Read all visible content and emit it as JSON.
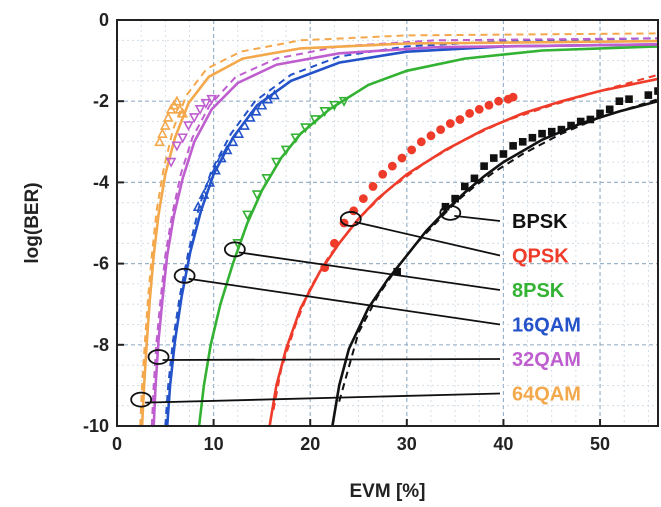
{
  "chart_data": {
    "type": "line",
    "xlabel": "EVM  [%]",
    "ylabel": "log(BER)",
    "xlim": [
      0,
      56
    ],
    "ylim": [
      -10,
      0
    ],
    "x_ticks": [
      0,
      10,
      20,
      30,
      40,
      50
    ],
    "y_ticks": [
      0,
      -2,
      -4,
      -6,
      -8,
      -10
    ],
    "grid": true,
    "legend_placement": "right",
    "series": [
      {
        "name": "BPSK",
        "color": "#111111",
        "marker": "square",
        "theory": [
          [
            22.3,
            -10
          ],
          [
            23,
            -9
          ],
          [
            24,
            -8.1
          ],
          [
            26,
            -7.1
          ],
          [
            28,
            -6.4
          ],
          [
            30,
            -5.8
          ],
          [
            32,
            -5.2
          ],
          [
            34,
            -4.7
          ],
          [
            36,
            -4.25
          ],
          [
            38,
            -3.85
          ],
          [
            40,
            -3.5
          ],
          [
            44,
            -2.95
          ],
          [
            48,
            -2.55
          ],
          [
            52,
            -2.25
          ],
          [
            56,
            -2.0
          ]
        ],
        "simulation": [
          [
            23,
            -9.4
          ],
          [
            25,
            -7.7
          ],
          [
            27,
            -6.8
          ],
          [
            29,
            -6.1
          ],
          [
            31,
            -5.5
          ],
          [
            33,
            -5.0
          ],
          [
            35,
            -4.5
          ],
          [
            37,
            -4.1
          ],
          [
            39,
            -3.75
          ],
          [
            42,
            -3.3
          ],
          [
            46,
            -2.8
          ],
          [
            50,
            -2.4
          ],
          [
            54,
            -2.1
          ],
          [
            56,
            -1.95
          ]
        ],
        "measured": [
          [
            29,
            -6.2
          ],
          [
            34,
            -4.6
          ],
          [
            35,
            -4.4
          ],
          [
            36,
            -4.1
          ],
          [
            37,
            -3.9
          ],
          [
            38,
            -3.6
          ],
          [
            39,
            -3.4
          ],
          [
            40,
            -3.3
          ],
          [
            41,
            -3.1
          ],
          [
            42,
            -3.0
          ],
          [
            43,
            -2.9
          ],
          [
            44,
            -2.8
          ],
          [
            45,
            -2.75
          ],
          [
            46,
            -2.7
          ],
          [
            47,
            -2.6
          ],
          [
            48,
            -2.5
          ],
          [
            49,
            -2.45
          ],
          [
            50,
            -2.3
          ],
          [
            51,
            -2.2
          ],
          [
            52,
            -2.0
          ],
          [
            53,
            -1.95
          ],
          [
            55,
            -1.85
          ],
          [
            56,
            -1.75
          ]
        ],
        "ellipse": [
          34.5,
          -4.75
        ]
      },
      {
        "name": "QPSK",
        "color": "#ee3b2a",
        "marker": "circle",
        "theory": [
          [
            15.8,
            -10
          ],
          [
            16.5,
            -9
          ],
          [
            17.5,
            -8.1
          ],
          [
            19,
            -7.1
          ],
          [
            21,
            -6.2
          ],
          [
            23,
            -5.5
          ],
          [
            25,
            -4.9
          ],
          [
            27,
            -4.4
          ],
          [
            30,
            -3.8
          ],
          [
            34,
            -3.2
          ],
          [
            38,
            -2.7
          ],
          [
            42,
            -2.3
          ],
          [
            46,
            -2.0
          ],
          [
            50,
            -1.75
          ],
          [
            56,
            -1.45
          ]
        ],
        "simulation": [
          [
            16.2,
            -9.6
          ],
          [
            17,
            -8.6
          ],
          [
            18.5,
            -7.5
          ],
          [
            20,
            -6.6
          ],
          [
            22,
            -5.8
          ],
          [
            25,
            -4.9
          ],
          [
            28,
            -4.2
          ],
          [
            32,
            -3.5
          ],
          [
            36,
            -2.95
          ],
          [
            40,
            -2.5
          ],
          [
            45,
            -2.1
          ],
          [
            50,
            -1.75
          ],
          [
            56,
            -1.35
          ]
        ],
        "measured": [
          [
            21.5,
            -6.1
          ],
          [
            22.5,
            -5.5
          ],
          [
            23.5,
            -5.0
          ],
          [
            24.5,
            -4.7
          ],
          [
            25.5,
            -4.4
          ],
          [
            26.5,
            -4.1
          ],
          [
            27.5,
            -3.8
          ],
          [
            28.5,
            -3.6
          ],
          [
            29.5,
            -3.4
          ],
          [
            30.5,
            -3.2
          ],
          [
            31.5,
            -3.0
          ],
          [
            32.5,
            -2.85
          ],
          [
            33.5,
            -2.7
          ],
          [
            34.5,
            -2.55
          ],
          [
            35.5,
            -2.45
          ],
          [
            36.5,
            -2.3
          ],
          [
            37.5,
            -2.2
          ],
          [
            38.5,
            -2.1
          ],
          [
            39.5,
            -2.0
          ],
          [
            40.5,
            -1.95
          ],
          [
            41,
            -1.9
          ]
        ],
        "ellipse": [
          24.2,
          -4.9
        ]
      },
      {
        "name": "8PSK",
        "color": "#33b233",
        "marker": "triangle-down",
        "theory": [
          [
            8.5,
            -10
          ],
          [
            9,
            -9
          ],
          [
            9.7,
            -8
          ],
          [
            10.7,
            -7
          ],
          [
            12,
            -6
          ],
          [
            13.5,
            -5
          ],
          [
            15,
            -4.2
          ],
          [
            17,
            -3.4
          ],
          [
            19,
            -2.8
          ],
          [
            22,
            -2.2
          ],
          [
            26,
            -1.6
          ],
          [
            30,
            -1.25
          ],
          [
            36,
            -0.95
          ],
          [
            44,
            -0.75
          ],
          [
            56,
            -0.65
          ]
        ],
        "simulation": [
          [
            8.5,
            -10
          ],
          [
            9,
            -9
          ],
          [
            9.7,
            -8
          ],
          [
            10.7,
            -7
          ],
          [
            12,
            -6
          ],
          [
            13.5,
            -5
          ],
          [
            15,
            -4.2
          ],
          [
            17,
            -3.4
          ],
          [
            19,
            -2.8
          ],
          [
            22,
            -2.2
          ],
          [
            26,
            -1.6
          ],
          [
            30,
            -1.25
          ],
          [
            36,
            -0.95
          ],
          [
            44,
            -0.75
          ],
          [
            56,
            -0.65
          ]
        ],
        "measured": [
          [
            12.5,
            -5.5
          ],
          [
            13.5,
            -4.8
          ],
          [
            14.5,
            -4.3
          ],
          [
            15.5,
            -3.9
          ],
          [
            16.5,
            -3.5
          ],
          [
            17.5,
            -3.2
          ],
          [
            18.5,
            -2.9
          ],
          [
            19.5,
            -2.65
          ],
          [
            20.5,
            -2.45
          ],
          [
            21.5,
            -2.25
          ],
          [
            22.5,
            -2.1
          ],
          [
            23.5,
            -2.0
          ]
        ],
        "ellipse": [
          12.2,
          -5.65
        ]
      },
      {
        "name": "16QAM",
        "color": "#2352c9",
        "marker": "triangle-up",
        "theory": [
          [
            5.2,
            -10
          ],
          [
            5.5,
            -9
          ],
          [
            6,
            -7.9
          ],
          [
            6.7,
            -6.8
          ],
          [
            7.6,
            -5.7
          ],
          [
            8.7,
            -4.7
          ],
          [
            10,
            -3.8
          ],
          [
            12,
            -2.9
          ],
          [
            14.5,
            -2.1
          ],
          [
            18,
            -1.5
          ],
          [
            23,
            -1.05
          ],
          [
            30,
            -0.78
          ],
          [
            40,
            -0.65
          ],
          [
            56,
            -0.6
          ]
        ],
        "simulation": [
          [
            5.0,
            -10
          ],
          [
            5.3,
            -9
          ],
          [
            5.8,
            -7.9
          ],
          [
            6.5,
            -6.8
          ],
          [
            7.4,
            -5.7
          ],
          [
            8.5,
            -4.6
          ],
          [
            9.8,
            -3.7
          ],
          [
            11.8,
            -2.8
          ],
          [
            14.3,
            -2.0
          ],
          [
            18,
            -1.35
          ],
          [
            23,
            -0.9
          ],
          [
            30,
            -0.65
          ],
          [
            40,
            -0.52
          ],
          [
            56,
            -0.45
          ]
        ],
        "measured": [
          [
            8.4,
            -4.6
          ],
          [
            9.0,
            -4.3
          ],
          [
            9.6,
            -4.0
          ],
          [
            10.2,
            -3.7
          ],
          [
            10.8,
            -3.4
          ],
          [
            11.4,
            -3.2
          ],
          [
            12.0,
            -3.0
          ],
          [
            12.6,
            -2.8
          ],
          [
            13.2,
            -2.6
          ],
          [
            13.8,
            -2.4
          ],
          [
            14.4,
            -2.25
          ],
          [
            15.0,
            -2.1
          ],
          [
            15.6,
            -1.95
          ],
          [
            16.3,
            -1.85
          ]
        ],
        "ellipse": [
          7.0,
          -6.3
        ]
      },
      {
        "name": "32QAM",
        "color": "#bf5fcf",
        "marker": "triangle-down",
        "theory": [
          [
            3.8,
            -10
          ],
          [
            4.0,
            -9
          ],
          [
            4.3,
            -7.9
          ],
          [
            4.7,
            -6.9
          ],
          [
            5.2,
            -5.8
          ],
          [
            5.9,
            -4.8
          ],
          [
            6.8,
            -3.9
          ],
          [
            8,
            -3.0
          ],
          [
            9.8,
            -2.2
          ],
          [
            12.5,
            -1.55
          ],
          [
            16.5,
            -1.1
          ],
          [
            23,
            -0.82
          ],
          [
            33,
            -0.67
          ],
          [
            56,
            -0.6
          ]
        ],
        "simulation": [
          [
            3.6,
            -10
          ],
          [
            3.8,
            -9
          ],
          [
            4.1,
            -7.9
          ],
          [
            4.5,
            -6.9
          ],
          [
            5.0,
            -5.8
          ],
          [
            5.7,
            -4.8
          ],
          [
            6.6,
            -3.8
          ],
          [
            7.8,
            -2.9
          ],
          [
            9.6,
            -2.1
          ],
          [
            12.3,
            -1.4
          ],
          [
            16.5,
            -0.95
          ],
          [
            23,
            -0.65
          ],
          [
            33,
            -0.5
          ],
          [
            56,
            -0.45
          ]
        ],
        "measured": [
          [
            5.6,
            -3.5
          ],
          [
            6.2,
            -3.1
          ],
          [
            6.8,
            -2.9
          ],
          [
            7.4,
            -2.6
          ],
          [
            8.0,
            -2.4
          ],
          [
            8.6,
            -2.2
          ],
          [
            9.2,
            -2.05
          ],
          [
            9.8,
            -1.95
          ]
        ],
        "ellipse": [
          4.3,
          -8.3
        ]
      },
      {
        "name": "64QAM",
        "color": "#f4a84c",
        "marker": "triangle-up",
        "theory": [
          [
            2.6,
            -10
          ],
          [
            2.8,
            -9
          ],
          [
            3.1,
            -7.9
          ],
          [
            3.4,
            -6.9
          ],
          [
            3.8,
            -5.8
          ],
          [
            4.3,
            -4.8
          ],
          [
            5.0,
            -3.8
          ],
          [
            6.0,
            -2.9
          ],
          [
            7.4,
            -2.05
          ],
          [
            9.5,
            -1.4
          ],
          [
            13,
            -0.95
          ],
          [
            19,
            -0.7
          ],
          [
            30,
            -0.58
          ],
          [
            56,
            -0.52
          ]
        ],
        "simulation": [
          [
            2.4,
            -10
          ],
          [
            2.6,
            -9
          ],
          [
            2.9,
            -7.9
          ],
          [
            3.2,
            -6.9
          ],
          [
            3.6,
            -5.8
          ],
          [
            4.1,
            -4.7
          ],
          [
            4.8,
            -3.7
          ],
          [
            5.8,
            -2.7
          ],
          [
            7.2,
            -1.85
          ],
          [
            9.3,
            -1.2
          ],
          [
            12.8,
            -0.78
          ],
          [
            19,
            -0.5
          ],
          [
            30,
            -0.38
          ],
          [
            56,
            -0.33
          ]
        ],
        "measured": [
          [
            4.4,
            -3.0
          ],
          [
            4.7,
            -2.8
          ],
          [
            5.0,
            -2.6
          ],
          [
            5.3,
            -2.4
          ],
          [
            5.6,
            -2.2
          ],
          [
            5.9,
            -2.1
          ],
          [
            6.2,
            -2.0
          ],
          [
            6.5,
            -2.2
          ],
          [
            6.8,
            -2.3
          ]
        ],
        "ellipse": [
          2.5,
          -9.35
        ]
      }
    ]
  }
}
